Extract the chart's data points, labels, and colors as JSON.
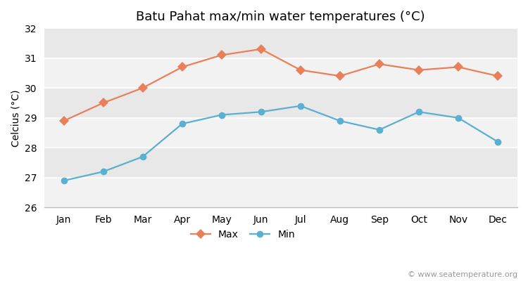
{
  "title": "Batu Pahat max/min water temperatures (°C)",
  "ylabel": "Celcius (°C)",
  "months": [
    "Jan",
    "Feb",
    "Mar",
    "Apr",
    "May",
    "Jun",
    "Jul",
    "Aug",
    "Sep",
    "Oct",
    "Nov",
    "Dec"
  ],
  "max_temps": [
    28.9,
    29.5,
    30.0,
    30.7,
    31.1,
    31.3,
    30.6,
    30.4,
    30.8,
    30.6,
    30.7,
    30.4
  ],
  "min_temps": [
    26.9,
    27.2,
    27.7,
    28.8,
    29.1,
    29.2,
    29.4,
    28.9,
    28.6,
    29.2,
    29.0,
    28.2
  ],
  "max_color": "#e8805a",
  "min_color": "#5ab0d0",
  "ylim": [
    26,
    32
  ],
  "yticks": [
    26,
    27,
    28,
    29,
    30,
    31,
    32
  ],
  "figure_bg": "#ffffff",
  "plot_bg_dark": "#e8e8e8",
  "plot_bg_light": "#f2f2f2",
  "grid_color": "#ffffff",
  "title_fontsize": 13,
  "label_fontsize": 10,
  "tick_fontsize": 10,
  "watermark": "© www.seatemperature.org",
  "legend_labels": [
    "Max",
    "Min"
  ]
}
